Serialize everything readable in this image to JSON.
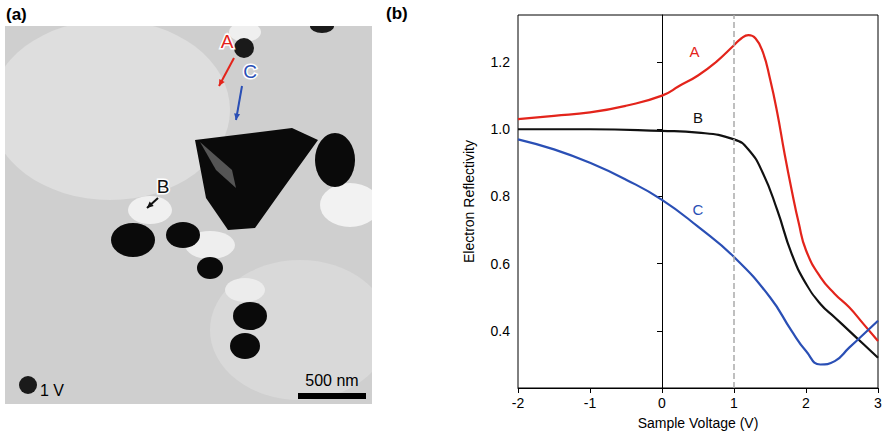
{
  "image_panel": {
    "panel_label": "(a)",
    "markers": [
      {
        "text": "A",
        "color": "#e3241b"
      },
      {
        "text": "B",
        "color": "#111111"
      },
      {
        "text": "C",
        "color": "#2a4fb5"
      }
    ],
    "scale_bar": "500 nm",
    "voltage": "1 V"
  },
  "chart_data": {
    "type": "line",
    "panel_label": "(b)",
    "x_label": "Sample Voltage (V)",
    "y_label": "Electron Reflectivity",
    "xlim": [
      -2,
      3
    ],
    "xticks": [
      -2,
      -1,
      0,
      1,
      2,
      3
    ],
    "ylim": [
      0.23,
      1.34
    ],
    "yticks": [
      0.4,
      0.6,
      0.8,
      {
        "value": 1,
        "label": "1.0"
      },
      1.2
    ],
    "vline_x": 1,
    "grid": false,
    "series": [
      {
        "name": "A",
        "color": "#e3241b",
        "label_at": [
          0.45,
          1.23
        ],
        "x": [
          -2,
          -1.5,
          -1,
          -0.5,
          0,
          0.25,
          0.5,
          0.75,
          1,
          1.1,
          1.2,
          1.3,
          1.4,
          1.5,
          1.6,
          1.7,
          1.8,
          1.9,
          2,
          2.2,
          2.4,
          2.6,
          2.8,
          3
        ],
        "values": [
          1.03,
          1.04,
          1.05,
          1.07,
          1.1,
          1.13,
          1.16,
          1.2,
          1.25,
          1.27,
          1.28,
          1.27,
          1.23,
          1.15,
          1.05,
          0.93,
          0.82,
          0.72,
          0.64,
          0.56,
          0.51,
          0.47,
          0.42,
          0.37
        ]
      },
      {
        "name": "B",
        "color": "#111111",
        "label_at": [
          0.5,
          1.035
        ],
        "x": [
          -2,
          -1,
          0,
          0.5,
          1,
          1.2,
          1.4,
          1.6,
          1.8,
          2,
          2.2,
          2.4,
          2.6,
          2.8,
          3
        ],
        "values": [
          1.0,
          1.0,
          0.995,
          0.99,
          0.97,
          0.94,
          0.87,
          0.76,
          0.63,
          0.54,
          0.48,
          0.44,
          0.4,
          0.36,
          0.32
        ]
      },
      {
        "name": "C",
        "color": "#2a4fb5",
        "label_at": [
          0.5,
          0.76
        ],
        "x": [
          -2,
          -1.5,
          -1,
          -0.5,
          0,
          0.5,
          1,
          1.5,
          1.8,
          2,
          2.2,
          2.4,
          2.6,
          2.8,
          3
        ],
        "values": [
          0.97,
          0.94,
          0.9,
          0.85,
          0.79,
          0.71,
          0.62,
          0.5,
          0.4,
          0.34,
          0.3,
          0.31,
          0.35,
          0.39,
          0.43
        ]
      }
    ]
  }
}
